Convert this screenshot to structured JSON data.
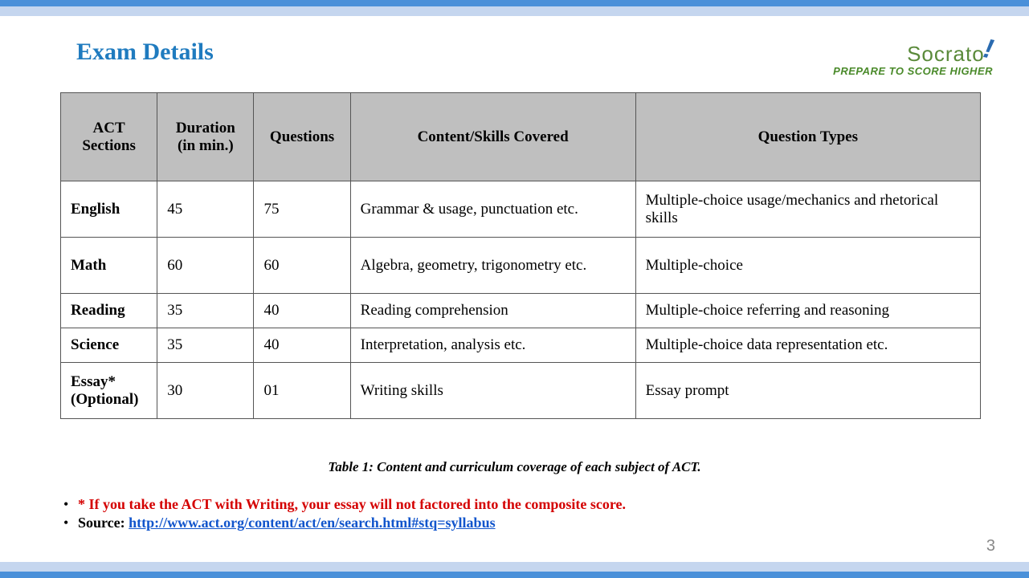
{
  "colors": {
    "top_dark": "#4a90d9",
    "top_light": "#c5d6ef",
    "title": "#1f7bbf",
    "header_bg": "#bfbfbf",
    "border": "#555555",
    "note_red": "#d40000",
    "link": "#1155cc",
    "logo_green": "#5a8a3a",
    "logo_blue": "#2a6bb0",
    "page_number": "#888888",
    "background": "#ffffff"
  },
  "title": "Exam Details",
  "logo": {
    "main": "Socrato",
    "tagline": "PREPARE TO SCORE HIGHER"
  },
  "table": {
    "columns": [
      "ACT Sections",
      "Duration (in min.)",
      "Questions",
      "Content/Skills  Covered",
      "Question  Types"
    ],
    "col_widths_pct": [
      10.5,
      10.5,
      10.5,
      31,
      37.5
    ],
    "header_fontsize": 19,
    "cell_fontsize": 19,
    "rows": [
      {
        "section": "English",
        "duration": "45",
        "questions": "75",
        "content": "Grammar & usage, punctuation etc.",
        "types": "Multiple-choice usage/mechanics and rhetorical skills"
      },
      {
        "section": "Math",
        "duration": "60",
        "questions": "60",
        "content": "Algebra, geometry, trigonometry etc.",
        "types": "Multiple-choice"
      },
      {
        "section": "Reading",
        "duration": "35",
        "questions": "40",
        "content": "Reading comprehension",
        "types": "Multiple-choice referring and reasoning"
      },
      {
        "section": "Science",
        "duration": "35",
        "questions": "40",
        "content": "Interpretation, analysis etc.",
        "types": "Multiple-choice data representation etc."
      },
      {
        "section": "Essay* (Optional)",
        "duration": "30",
        "questions": "01",
        "content": "Writing skills",
        "types": "Essay prompt"
      }
    ]
  },
  "caption": "Table 1: Content and curriculum coverage of each subject of ACT.",
  "notes": {
    "red": "* If you take the ACT with Writing, your essay will not factored into the composite score.",
    "source_label": " Source: ",
    "source_url": "http://www.act.org/content/act/en/search.html#stq=syllabus"
  },
  "page_number": "3"
}
